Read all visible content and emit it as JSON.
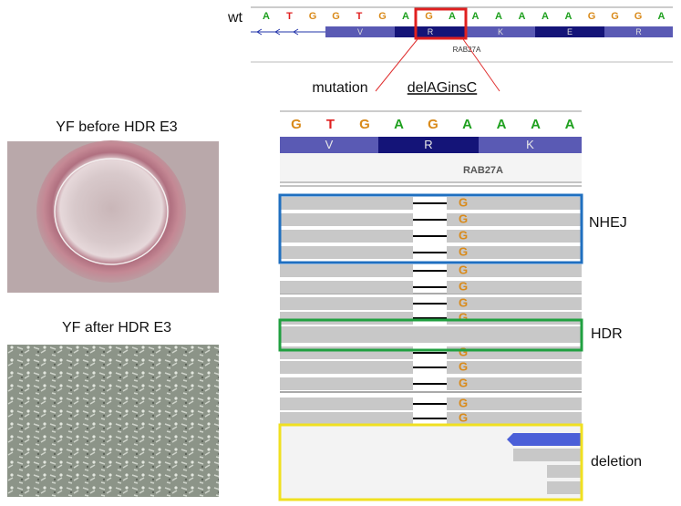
{
  "figure": {
    "wt_label": "wt",
    "wt_sequence": [
      "A",
      "T",
      "G",
      "G",
      "T",
      "G",
      "A",
      "G",
      "A",
      "A",
      "A",
      "A",
      "A",
      "A",
      "G",
      "G",
      "G",
      "A"
    ],
    "wt_amino_acids": [
      "V",
      "R",
      "K",
      "E",
      "R"
    ],
    "wt_gene": "RAB27A",
    "mutation_label": "mutation",
    "mutation_name": "delAGinsC",
    "zoom_sequence": [
      "G",
      "T",
      "G",
      "A",
      "G",
      "A",
      "A",
      "A",
      "A"
    ],
    "zoom_amino_acids": [
      "V",
      "R",
      "K"
    ],
    "zoom_gene": "RAB27A",
    "read_bases": [
      "G",
      "G",
      "G",
      "G",
      "G",
      "G",
      "G",
      "G",
      "G",
      "G",
      "G",
      "G",
      "G"
    ],
    "nhej_label": "NHEJ",
    "hdr_label": "HDR",
    "deletion_label": "deletion",
    "before_title": "YF  before HDR E3",
    "after_title": "YF  after HDR E3"
  }
}
